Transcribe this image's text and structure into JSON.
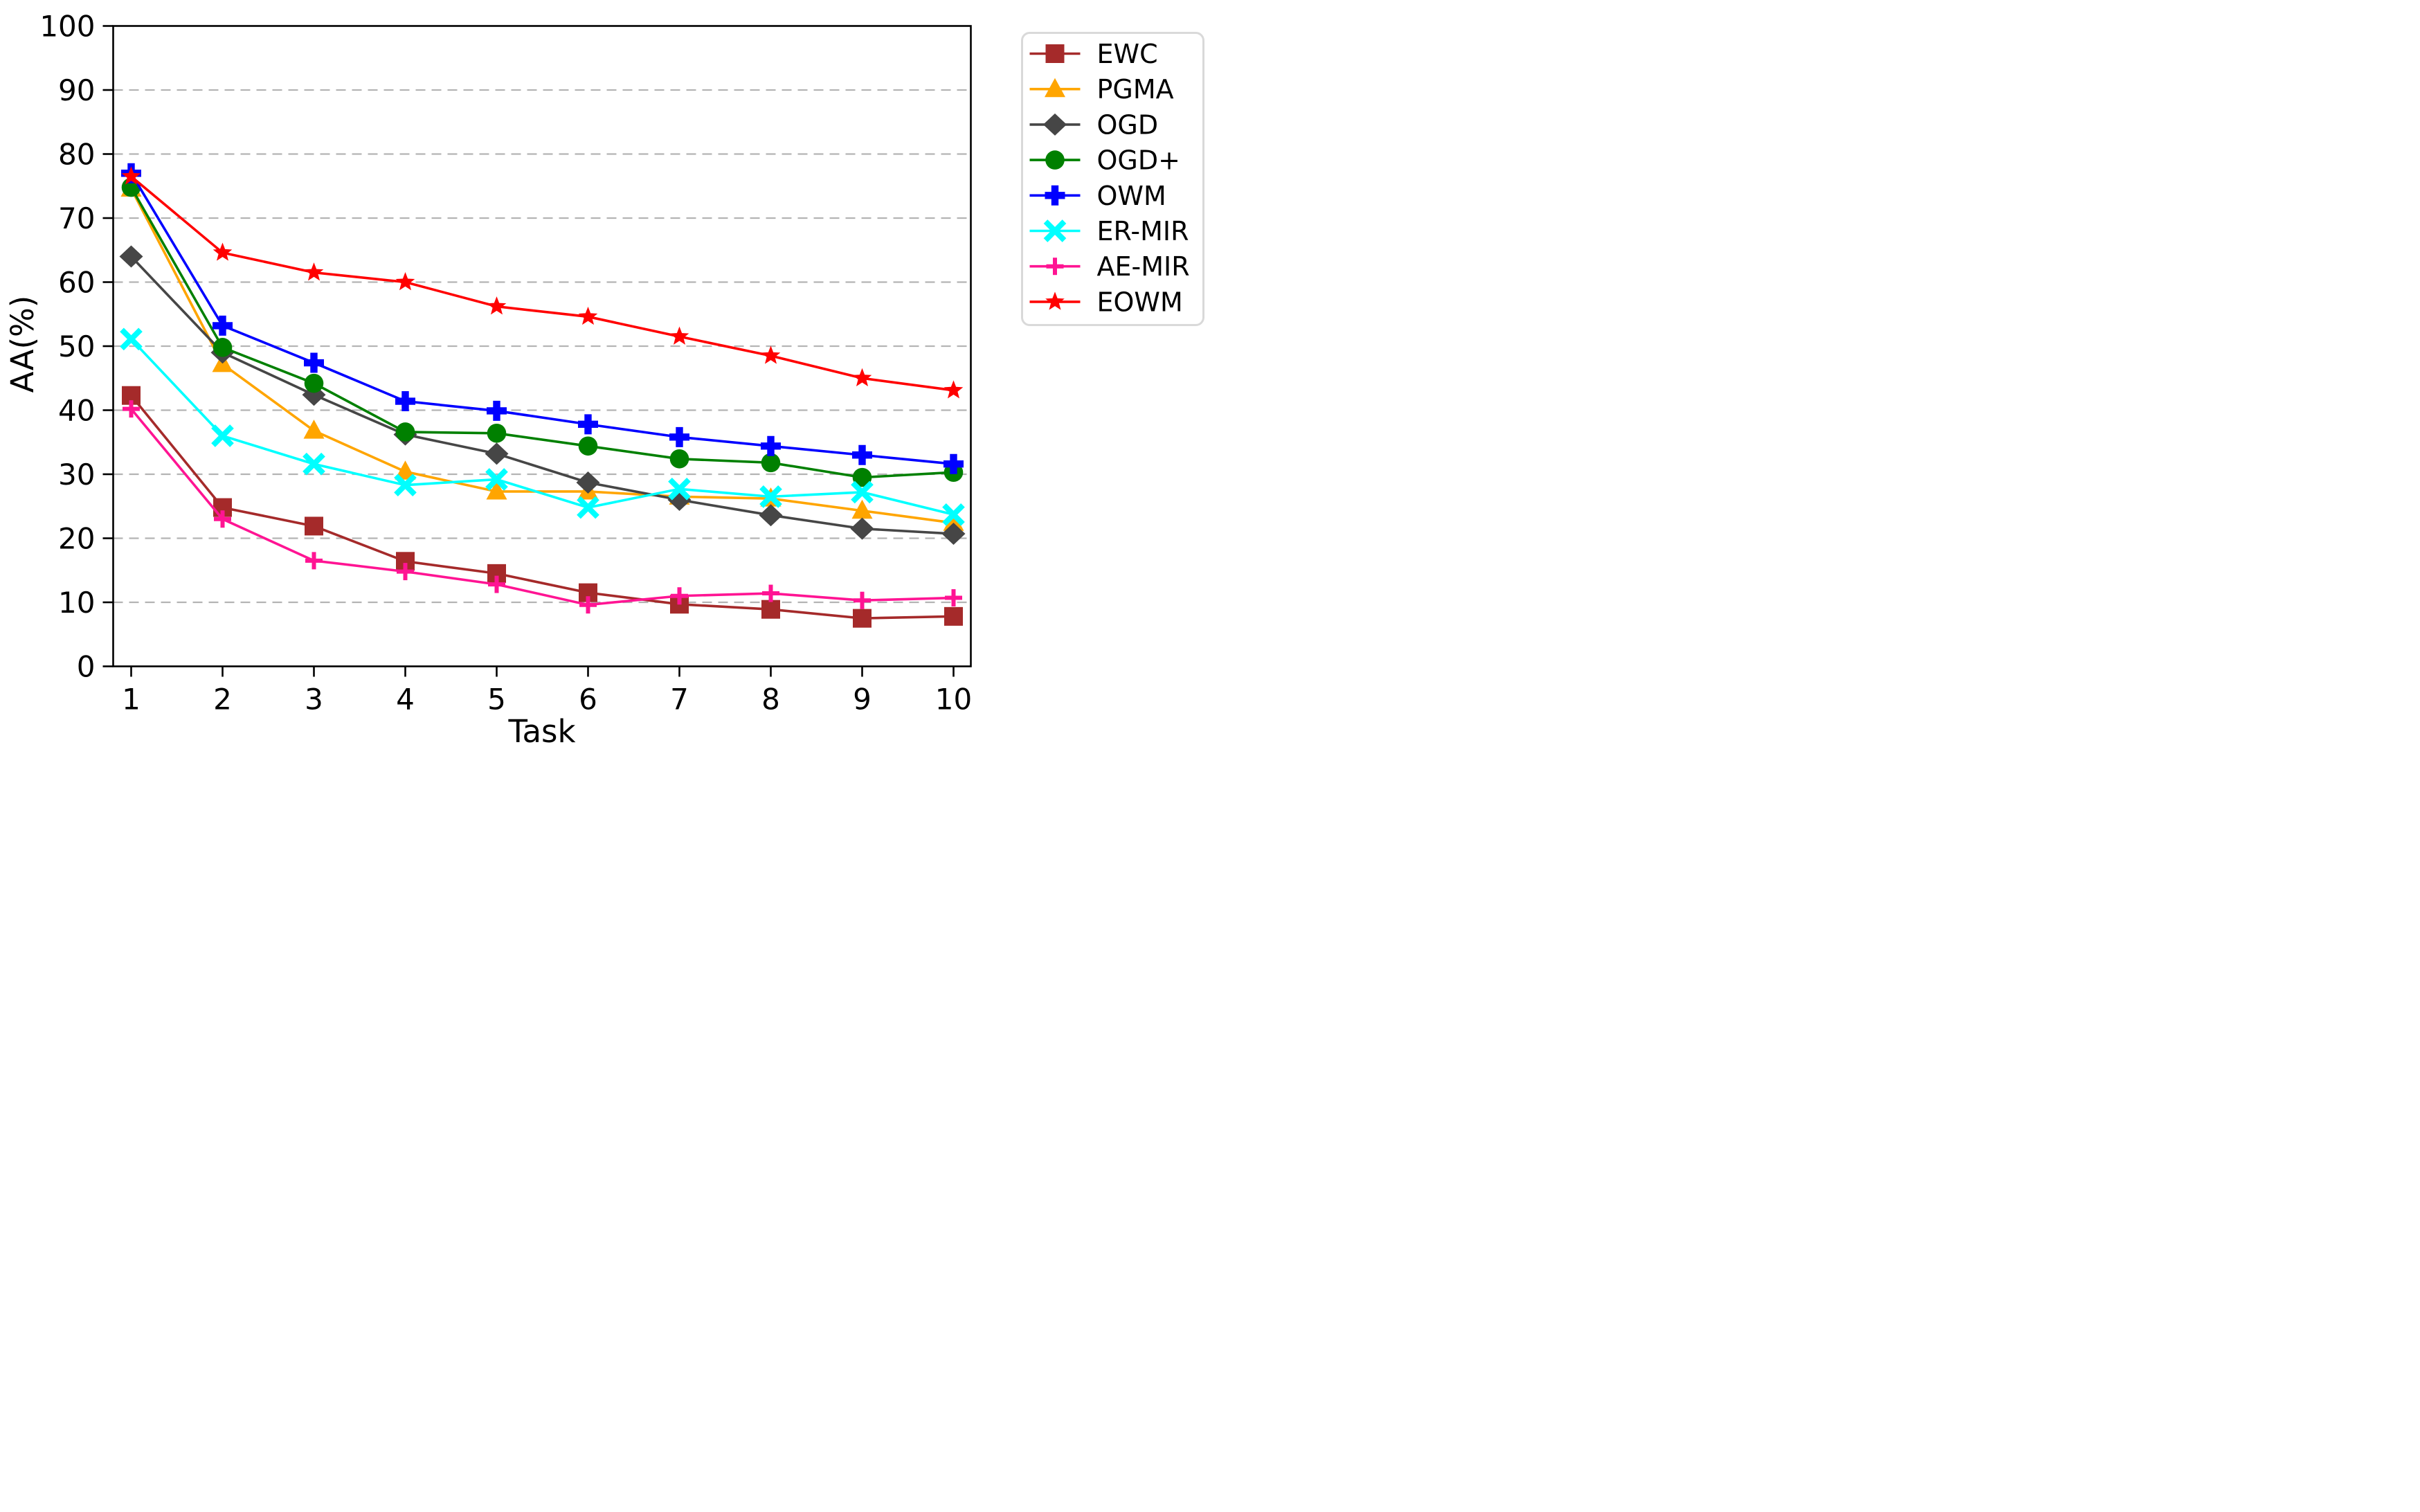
{
  "figure": {
    "background": "#ffffff",
    "kind": "matplotlib-style line chart, legend outside upper right"
  },
  "chart_data": {
    "type": "line",
    "title": "",
    "xlabel": "Task",
    "ylabel": "AA(%)",
    "x": [
      1,
      2,
      3,
      4,
      5,
      6,
      7,
      8,
      9,
      10
    ],
    "xlim": [
      0.8,
      10.2
    ],
    "ylim": [
      0,
      100
    ],
    "yticks": [
      0,
      10,
      20,
      30,
      40,
      50,
      60,
      70,
      80,
      90,
      100
    ],
    "grid": "horizontal dashed gray lines at 10..90",
    "legend_position": "outside-upper-right",
    "series": [
      {
        "name": "EWC",
        "color": "#A52A2A",
        "marker": "square",
        "values": [
          42.3,
          24.8,
          21.9,
          16.4,
          14.5,
          11.5,
          9.7,
          8.9,
          7.5,
          7.8
        ]
      },
      {
        "name": "PGMA",
        "color": "#FFA500",
        "marker": "triangle-up",
        "values": [
          74.6,
          47.2,
          36.8,
          30.4,
          27.3,
          27.3,
          26.5,
          26.2,
          24.3,
          22.4
        ]
      },
      {
        "name": "OGD",
        "color": "#464646",
        "marker": "diamond",
        "values": [
          64.0,
          49.0,
          42.4,
          36.2,
          33.2,
          28.7,
          26.0,
          23.6,
          21.5,
          20.7
        ]
      },
      {
        "name": "OGD+",
        "color": "#008000",
        "marker": "circle",
        "values": [
          74.8,
          49.8,
          44.2,
          36.6,
          36.4,
          34.4,
          32.4,
          31.8,
          29.5,
          30.3
        ]
      },
      {
        "name": "OWM",
        "color": "#0000FF",
        "marker": "plus-filled",
        "values": [
          77.0,
          53.2,
          47.4,
          41.4,
          39.9,
          37.8,
          35.8,
          34.4,
          33.0,
          31.6
        ]
      },
      {
        "name": "ER-MIR",
        "color": "#00FFFF",
        "marker": "x-thick",
        "values": [
          51.1,
          36.0,
          31.6,
          28.3,
          29.2,
          24.8,
          27.7,
          26.5,
          27.2,
          23.7
        ]
      },
      {
        "name": "AE-MIR",
        "color": "#FF1493",
        "marker": "plus-thin",
        "values": [
          40.2,
          23.0,
          16.5,
          14.8,
          12.8,
          9.6,
          11.0,
          11.4,
          10.3,
          10.7
        ]
      },
      {
        "name": "EOWM",
        "color": "#FF0000",
        "marker": "star",
        "values": [
          76.5,
          64.6,
          61.5,
          60.0,
          56.2,
          54.6,
          51.5,
          48.5,
          45.0,
          43.1
        ]
      }
    ]
  },
  "colors": {
    "grid": "#b4b4b4",
    "axis": "#000000",
    "legend_border": "#d9d9d9",
    "background": "#ffffff",
    "text": "#000000"
  }
}
